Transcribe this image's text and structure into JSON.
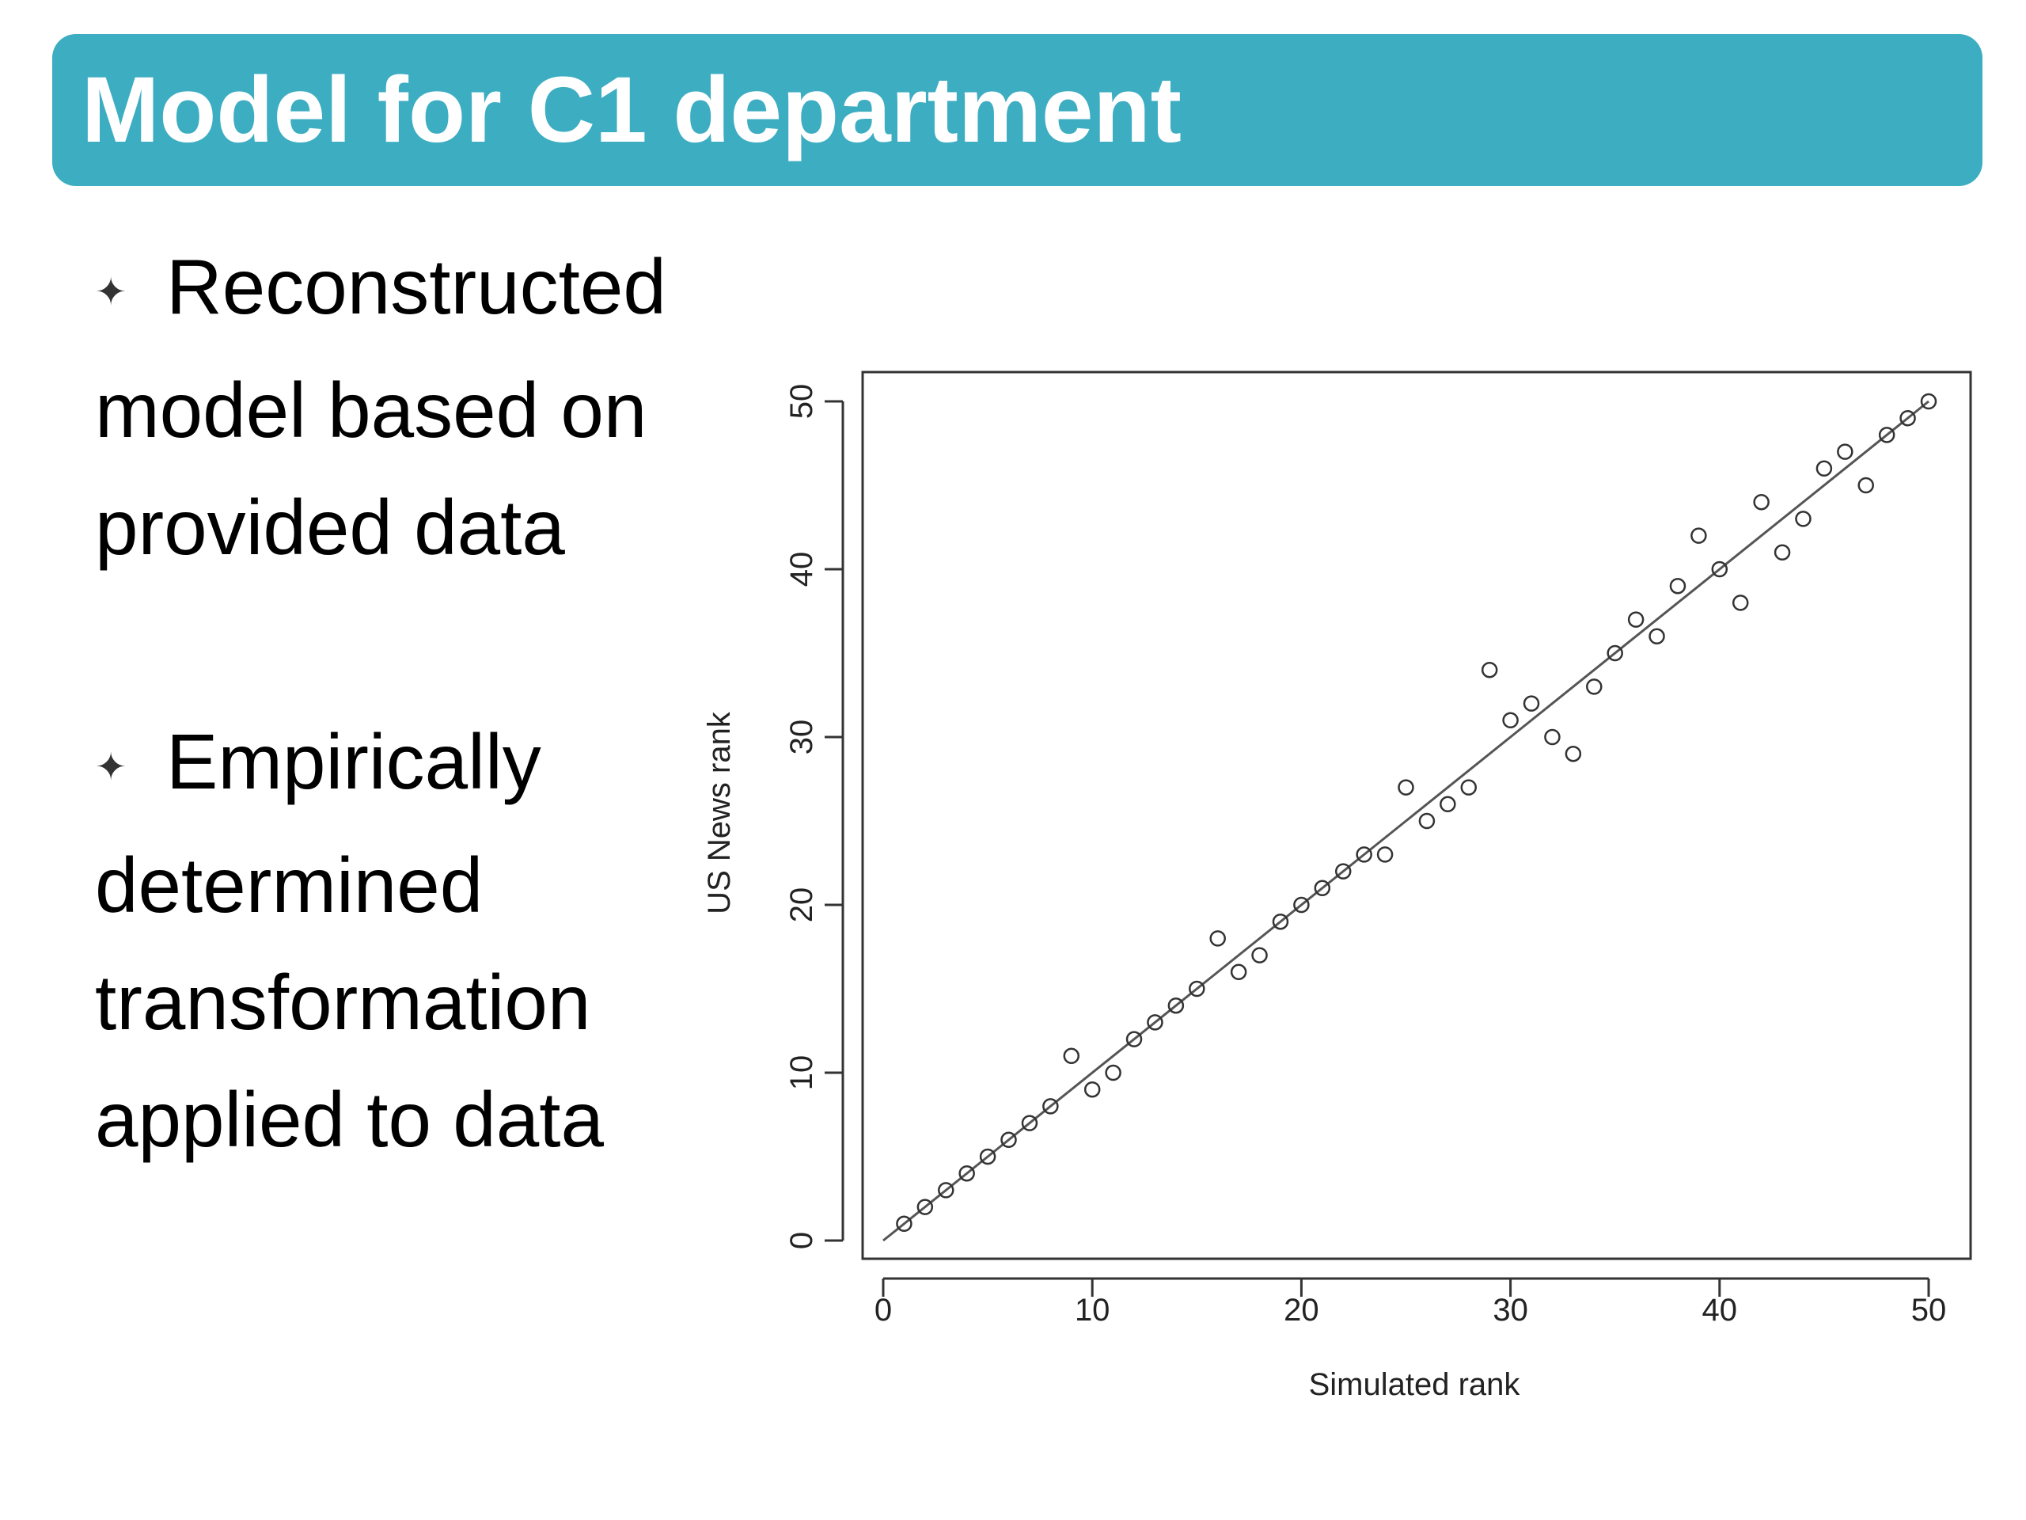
{
  "header": {
    "title": "Model for C1 department",
    "background_color": "#3dadc2",
    "text_color": "#ffffff"
  },
  "bullets": [
    {
      "marker_icon": "four-point-star-icon",
      "text": "Reconstructed model based on provided data"
    },
    {
      "marker_icon": "four-point-star-icon",
      "text": "Empirically determined transformation applied to data"
    }
  ],
  "chart_data": {
    "type": "scatter",
    "title": "",
    "xlabel": "Simulated rank",
    "ylabel": "US News rank",
    "xlim": [
      0,
      50
    ],
    "ylim": [
      0,
      50
    ],
    "xticks": [
      "0",
      "10",
      "20",
      "30",
      "40",
      "50"
    ],
    "yticks": [
      "0",
      "10",
      "20",
      "30",
      "40",
      "50"
    ],
    "grid": false,
    "reference_line": {
      "from": [
        0,
        0
      ],
      "to": [
        50,
        50
      ]
    },
    "points": [
      [
        1,
        1
      ],
      [
        2,
        2
      ],
      [
        3,
        3
      ],
      [
        4,
        4
      ],
      [
        5,
        5
      ],
      [
        6,
        6
      ],
      [
        7,
        7
      ],
      [
        8,
        8
      ],
      [
        9,
        11
      ],
      [
        10,
        9
      ],
      [
        11,
        10
      ],
      [
        12,
        12
      ],
      [
        13,
        13
      ],
      [
        14,
        14
      ],
      [
        15,
        15
      ],
      [
        16,
        18
      ],
      [
        17,
        16
      ],
      [
        18,
        17
      ],
      [
        19,
        19
      ],
      [
        20,
        20
      ],
      [
        21,
        21
      ],
      [
        22,
        22
      ],
      [
        23,
        23
      ],
      [
        24,
        23
      ],
      [
        25,
        27
      ],
      [
        26,
        25
      ],
      [
        27,
        26
      ],
      [
        28,
        27
      ],
      [
        29,
        34
      ],
      [
        30,
        31
      ],
      [
        31,
        32
      ],
      [
        32,
        30
      ],
      [
        33,
        29
      ],
      [
        34,
        33
      ],
      [
        35,
        35
      ],
      [
        36,
        37
      ],
      [
        37,
        36
      ],
      [
        38,
        39
      ],
      [
        39,
        42
      ],
      [
        40,
        40
      ],
      [
        41,
        38
      ],
      [
        42,
        44
      ],
      [
        43,
        41
      ],
      [
        44,
        43
      ],
      [
        45,
        46
      ],
      [
        46,
        47
      ],
      [
        47,
        45
      ],
      [
        48,
        48
      ],
      [
        49,
        49
      ],
      [
        50,
        50
      ]
    ],
    "marker": "open-circle",
    "colors": {
      "points": "#333333",
      "line": "#555555",
      "axes": "#333333"
    }
  }
}
